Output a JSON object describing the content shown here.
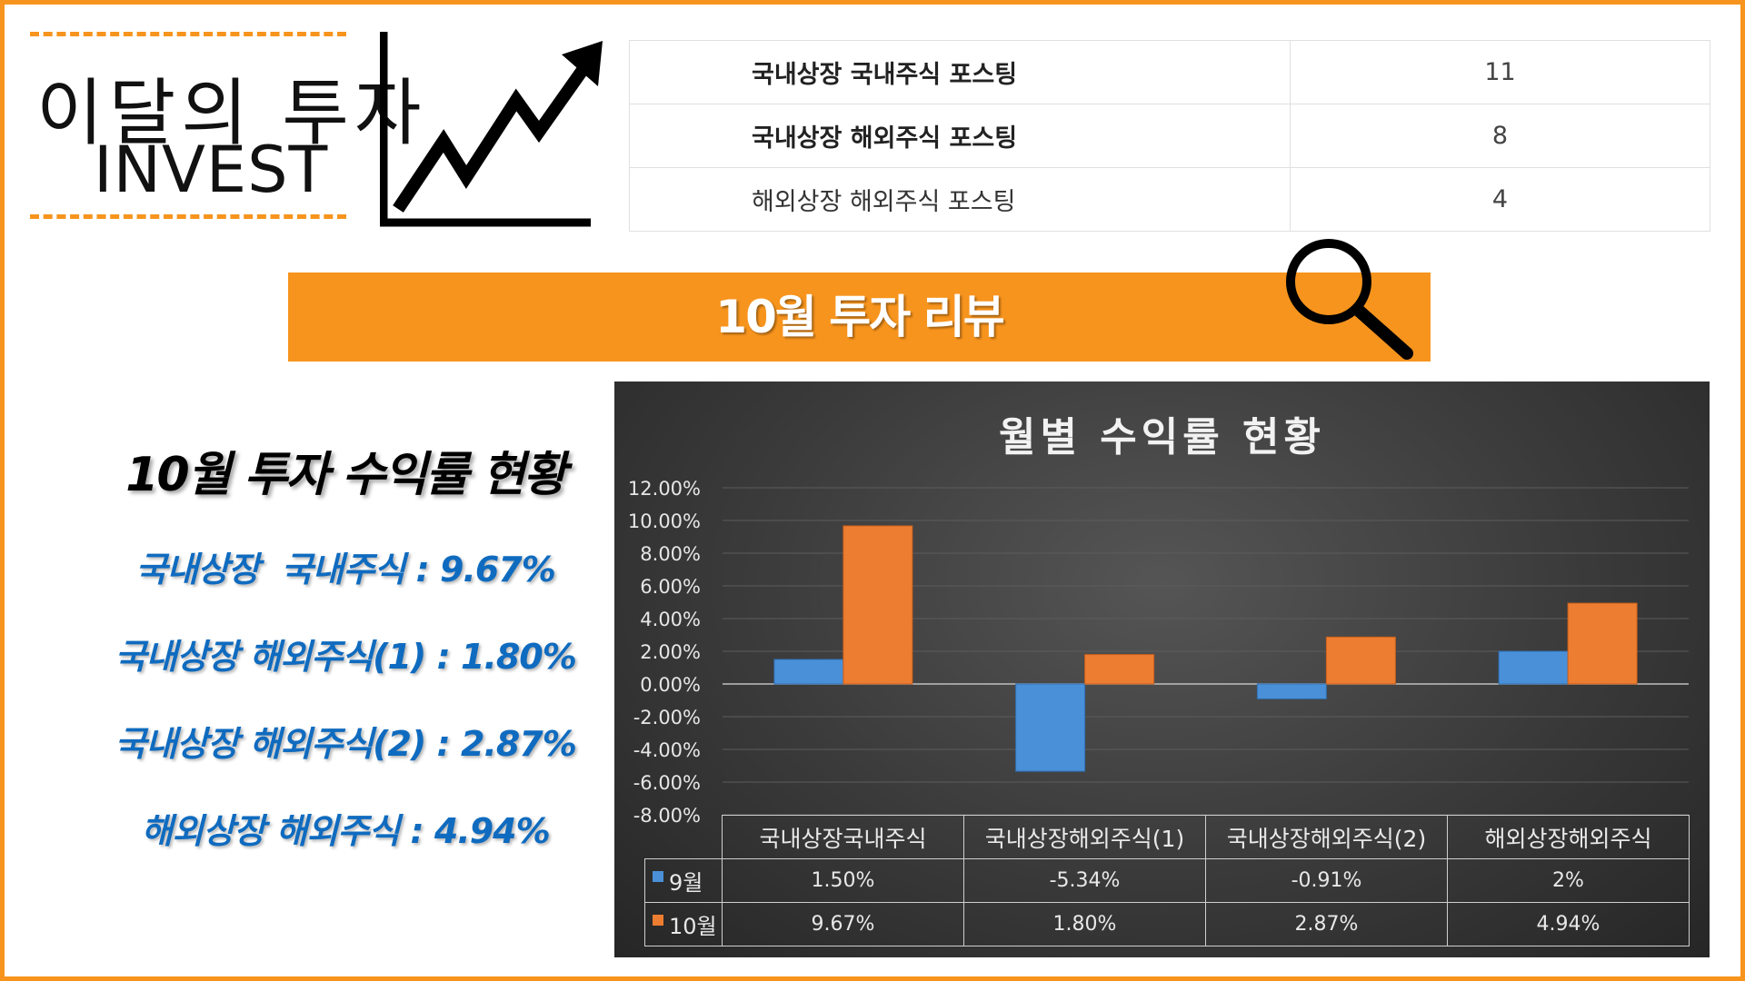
{
  "logo": {
    "title_kr": "이달의 투자",
    "title_en": "INVEST"
  },
  "stats_table": [
    {
      "label": "국내상장 국내주식 포스팅",
      "value": "11",
      "bold": true
    },
    {
      "label": "국내상장 해외주식 포스팅",
      "value": "8",
      "bold": true
    },
    {
      "label": "해외상장 해외주식 포스팅",
      "value": "4",
      "bold": false
    }
  ],
  "banner": {
    "text": "10월 투자 리뷰"
  },
  "summary": {
    "title": "10월 투자 수익률 현황",
    "lines": [
      "국내상장  국내주식 : 9.67%",
      "국내상장 해외주식(1) : 1.80%",
      "국내상장 해외주식(2) : 2.87%",
      "해외상장 해외주식 : 4.94%"
    ]
  },
  "colors": {
    "accent": "#f7941d",
    "summary_text": "#0f6bbf",
    "series_sep": "#4a90d9",
    "series_oct": "#ed7d31"
  },
  "chart_data": {
    "type": "bar",
    "title": "월별 수익률 현황",
    "categories": [
      "국내상장국내주식",
      "국내상장해외주식(1)",
      "국내상장해외주식(2)",
      "해외상장해외주식"
    ],
    "series": [
      {
        "name": "9월",
        "values": [
          1.5,
          -5.34,
          -0.91,
          2.0
        ],
        "labels": [
          "1.50%",
          "-5.34%",
          "-0.91%",
          "2%"
        ]
      },
      {
        "name": "10월",
        "values": [
          9.67,
          1.8,
          2.87,
          4.94
        ],
        "labels": [
          "9.67%",
          "1.80%",
          "2.87%",
          "4.94%"
        ]
      }
    ],
    "ylim": [
      -8,
      12
    ],
    "yticks": [
      "12.00%",
      "10.00%",
      "8.00%",
      "6.00%",
      "4.00%",
      "2.00%",
      "0.00%",
      "-2.00%",
      "-4.00%",
      "-6.00%",
      "-8.00%"
    ],
    "grid": true,
    "legend": "data-table"
  }
}
